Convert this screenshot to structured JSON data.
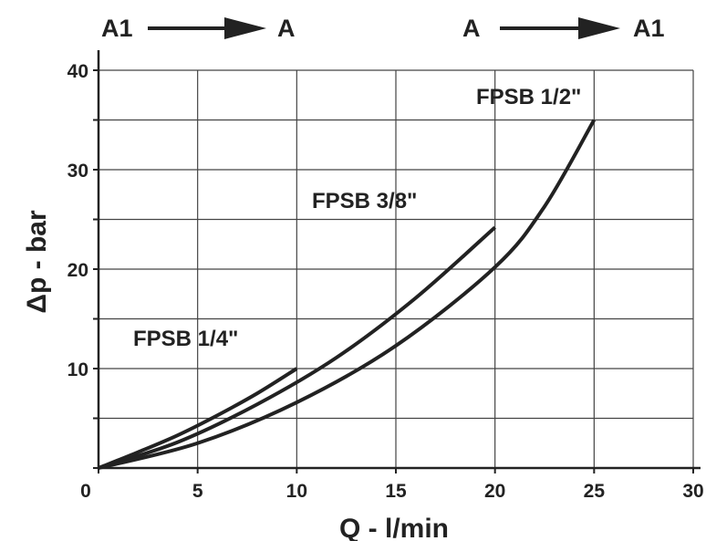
{
  "chart_data": {
    "type": "line",
    "xlabel": "Q - l/min",
    "ylabel": "Δp - bar",
    "xlim": [
      0,
      30
    ],
    "ylim": [
      0,
      40
    ],
    "grid": true,
    "x_ticks": [
      "0",
      "5",
      "10",
      "15",
      "20",
      "25",
      "30"
    ],
    "y_ticks": [
      "10",
      "20",
      "30",
      "40"
    ],
    "flow_directions": [
      {
        "from": "A1",
        "to": "A"
      },
      {
        "from": "A",
        "to": "A1"
      }
    ],
    "series": [
      {
        "name": "FPSB 1/4\"",
        "x": [
          0,
          2,
          4,
          6,
          8,
          10
        ],
        "y": [
          0,
          1.6,
          3.3,
          5.3,
          7.5,
          10
        ]
      },
      {
        "name": "FPSB 3/8\"",
        "x": [
          0,
          4,
          8,
          12,
          16,
          20
        ],
        "y": [
          0,
          2.6,
          6.4,
          11.1,
          17.1,
          24.2
        ]
      },
      {
        "name": "FPSB 1/2\"",
        "x": [
          0,
          5,
          10,
          15,
          20,
          22.5,
          25
        ],
        "y": [
          0,
          2.5,
          6.6,
          12.3,
          20.2,
          26.3,
          35
        ]
      }
    ],
    "colors": {
      "line": "#222222",
      "grid": "#444444"
    }
  }
}
